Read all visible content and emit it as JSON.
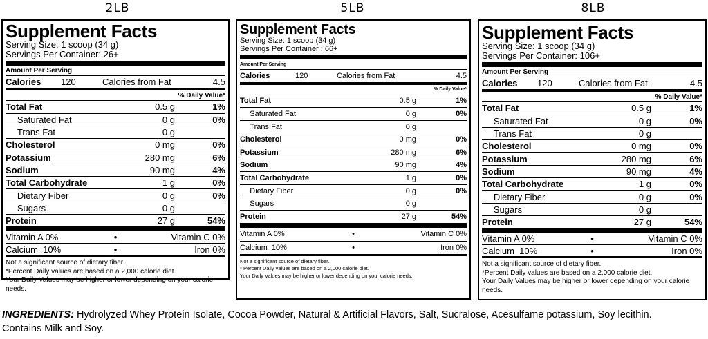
{
  "labels": [
    {
      "size": "2LB",
      "title": "Supplement Facts",
      "serving_size": "Serving Size: 1 scoop (34 g)",
      "servings_per_container": "Servings Per Container: 26+",
      "amount_per_serving": "Amount Per Serving",
      "calories_label": "Calories",
      "calories_value": "120",
      "calories_fat_label": "Calories from Fat",
      "calories_fat_value": "4.5",
      "dv_header": "% Daily Value*",
      "nutrients": [
        {
          "name": "Total Fat",
          "amount": "0.5 g",
          "dv": "1%"
        },
        {
          "name": "Saturated Fat",
          "amount": "0 g",
          "dv": "0%"
        },
        {
          "name": "Trans Fat",
          "amount": "0 g",
          "dv": ""
        },
        {
          "name": "Cholesterol",
          "amount": "0 mg",
          "dv": "0%"
        },
        {
          "name": "Potassium",
          "amount": "280 mg",
          "dv": "6%"
        },
        {
          "name": "Sodium",
          "amount": "90 mg",
          "dv": "4%"
        },
        {
          "name": "Total Carbohydrate",
          "amount": "1 g",
          "dv": "0%"
        },
        {
          "name": "Dietary Fiber",
          "amount": "0 g",
          "dv": "0%"
        },
        {
          "name": "Sugars",
          "amount": "0 g",
          "dv": ""
        },
        {
          "name": "Protein",
          "amount": "27 g",
          "dv": "54%"
        }
      ],
      "vitamin_a": "Vitamin A 0%",
      "vitamin_c": "Vitamin C 0%",
      "calcium": "Calcium  10%",
      "iron": "Iron 0%",
      "bullet": "•",
      "footnote_1": "Not a significant source of dietary fiber.",
      "footnote_2": "*Percent Daily values are based on a 2,000 calorie diet.",
      "footnote_3": "Your Daily Values may be higher or lower depending on your calorie needs."
    },
    {
      "size": "5LB",
      "title": "Supplement Facts",
      "serving_size": "Serving Size: 1 scoop (34 g)",
      "servings_per_container": "Servings Per Container : 66+",
      "amount_per_serving": "Amount Per Serving",
      "calories_label": "Calories",
      "calories_value": "120",
      "calories_fat_label": "Calories from Fat",
      "calories_fat_value": "4.5",
      "dv_header": "% Daily Value*",
      "nutrients": [
        {
          "name": "Total Fat",
          "amount": "0.5 g",
          "dv": "1%"
        },
        {
          "name": "Saturated Fat",
          "amount": "0 g",
          "dv": "0%"
        },
        {
          "name": "Trans Fat",
          "amount": "0 g",
          "dv": ""
        },
        {
          "name": "Cholesterol",
          "amount": "0 mg",
          "dv": "0%"
        },
        {
          "name": "Potassium",
          "amount": "280 mg",
          "dv": "6%"
        },
        {
          "name": "Sodium",
          "amount": "90 mg",
          "dv": "4%"
        },
        {
          "name": "Total Carbohydrate",
          "amount": "1 g",
          "dv": "0%"
        },
        {
          "name": "Dietary Fiber",
          "amount": "0 g",
          "dv": "0%"
        },
        {
          "name": "Sugars",
          "amount": "0 g",
          "dv": ""
        },
        {
          "name": "Protein",
          "amount": "27 g",
          "dv": "54%"
        }
      ],
      "vitamin_a": "Vitamin A  0%",
      "vitamin_c": "Vitamin C  0%",
      "calcium": "Calcium  10%",
      "iron": "Iron  0%",
      "bullet": "•",
      "footnote_1": "Not a significant source of dietary fiber.",
      "footnote_2": "* Percent Daily values are based on a 2,000 calorie diet.",
      "footnote_3": "Your Daily Values may be higher or lower depending on your calorie needs."
    },
    {
      "size": "8LB",
      "title": "Supplement Facts",
      "serving_size": "Serving Size: 1 scoop (34 g)",
      "servings_per_container": "Servings Per Container: 106+",
      "amount_per_serving": "Amount Per Serving",
      "calories_label": "Calories",
      "calories_value": "120",
      "calories_fat_label": "Calories from Fat",
      "calories_fat_value": "4.5",
      "dv_header": "% Daily Value*",
      "nutrients": [
        {
          "name": "Total Fat",
          "amount": "0.5 g",
          "dv": "1%"
        },
        {
          "name": "Saturated Fat",
          "amount": "0 g",
          "dv": "0%"
        },
        {
          "name": "Trans Fat",
          "amount": "0 g",
          "dv": ""
        },
        {
          "name": "Cholesterol",
          "amount": "0 mg",
          "dv": "0%"
        },
        {
          "name": "Potassium",
          "amount": "280 mg",
          "dv": "6%"
        },
        {
          "name": "Sodium",
          "amount": "90 mg",
          "dv": "4%"
        },
        {
          "name": "Total Carbohydrate",
          "amount": "1 g",
          "dv": "0%"
        },
        {
          "name": "Dietary Fiber",
          "amount": "0 g",
          "dv": "0%"
        },
        {
          "name": "Sugars",
          "amount": "0 g",
          "dv": ""
        },
        {
          "name": "Protein",
          "amount": "27 g",
          "dv": "54%"
        }
      ],
      "vitamin_a": "Vitamin A 0%",
      "vitamin_c": "Vitamin C 0%",
      "calcium": "Calcium  10%",
      "iron": "Iron 0%",
      "bullet": "•",
      "footnote_1": "Not a significant source of dietary fiber.",
      "footnote_2": "*Percent Daily values are based on a 2,000 calorie diet.",
      "footnote_3": "Your Daily Values may be higher or lower depending on your calorie needs."
    }
  ],
  "ingredients": {
    "heading": "INGREDIENTS:",
    "text": " Hydrolyzed Whey Protein Isolate, Cocoa Powder, Natural & Artificial Flavors, Salt, Sucralose, Acesulfame potassium, Soy lecithin.",
    "allergens": "Contains Milk and Soy."
  }
}
